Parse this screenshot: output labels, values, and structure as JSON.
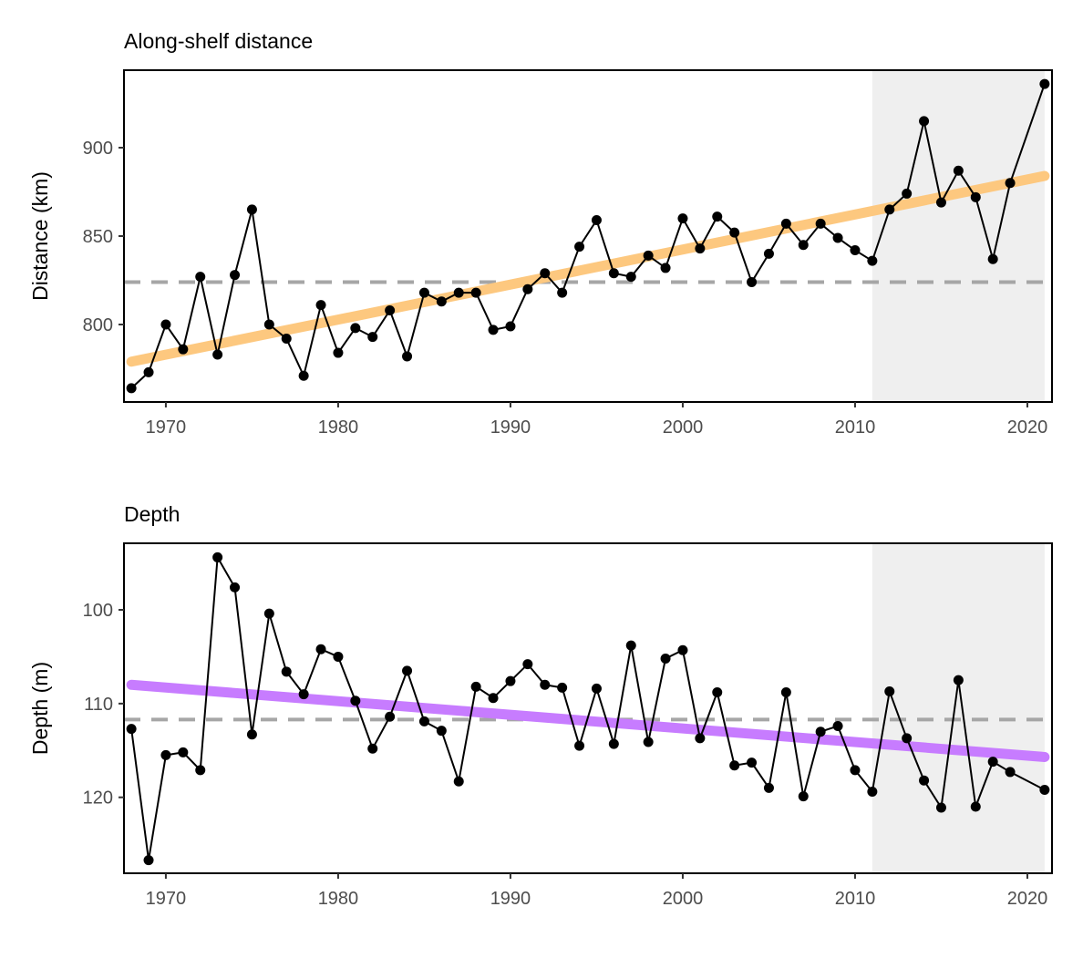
{
  "chart_data": [
    {
      "type": "line",
      "title": "Along-shelf distance",
      "ylabel": "Distance (km)",
      "x": [
        1968,
        1969,
        1970,
        1971,
        1972,
        1973,
        1974,
        1975,
        1976,
        1977,
        1978,
        1979,
        1980,
        1981,
        1982,
        1983,
        1984,
        1985,
        1986,
        1987,
        1988,
        1989,
        1990,
        1991,
        1992,
        1993,
        1994,
        1995,
        1996,
        1997,
        1998,
        1999,
        2000,
        2001,
        2002,
        2003,
        2004,
        2005,
        2006,
        2007,
        2008,
        2009,
        2010,
        2011,
        2012,
        2013,
        2014,
        2015,
        2016,
        2017,
        2018,
        2019,
        2021
      ],
      "series": [
        {
          "color": "#000000",
          "values": [
            764,
            773,
            800,
            786,
            827,
            783,
            828,
            865,
            800,
            792,
            771,
            811,
            784,
            798,
            793,
            808,
            782,
            818,
            813,
            818,
            818,
            797,
            799,
            820,
            829,
            818,
            844,
            859,
            829,
            827,
            839,
            832,
            860,
            843,
            861,
            852,
            824,
            840,
            857,
            845,
            857,
            849,
            842,
            836,
            865,
            874,
            915,
            869,
            887,
            872,
            837,
            880,
            936
          ]
        }
      ],
      "mean": 824,
      "mean_color": "#a6a6a6",
      "trend": {
        "x": [
          1968,
          2021
        ],
        "values": [
          779,
          884
        ],
        "color": "#fdc87f"
      },
      "shaded": [
        2011,
        2021
      ],
      "shade_color": "#efefef",
      "xlim": [
        1967.57,
        2021.43
      ],
      "xticks": [
        1970,
        1980,
        1990,
        2000,
        2010,
        2020
      ],
      "ylim": [
        756.2,
        943.8
      ],
      "yticks": [
        800,
        850,
        900
      ],
      "y_reversed": false
    },
    {
      "type": "line",
      "title": "Depth",
      "ylabel": "Depth (m)",
      "x": [
        1968,
        1969,
        1970,
        1971,
        1972,
        1973,
        1974,
        1975,
        1976,
        1977,
        1978,
        1979,
        1980,
        1981,
        1982,
        1983,
        1984,
        1985,
        1986,
        1987,
        1988,
        1989,
        1990,
        1991,
        1992,
        1993,
        1994,
        1995,
        1996,
        1997,
        1998,
        1999,
        2000,
        2001,
        2002,
        2003,
        2004,
        2005,
        2006,
        2007,
        2008,
        2009,
        2010,
        2011,
        2012,
        2013,
        2014,
        2015,
        2016,
        2017,
        2018,
        2019,
        2021
      ],
      "series": [
        {
          "color": "#000000",
          "values": [
            112.7,
            126.7,
            115.5,
            115.2,
            117.1,
            94.4,
            97.6,
            113.3,
            100.4,
            106.6,
            109.0,
            104.2,
            105.0,
            109.7,
            114.8,
            111.4,
            106.5,
            111.9,
            112.9,
            118.3,
            108.2,
            109.4,
            107.6,
            105.8,
            108.0,
            108.3,
            114.5,
            108.4,
            114.3,
            103.8,
            114.1,
            105.2,
            104.3,
            113.7,
            108.8,
            116.6,
            116.3,
            119.0,
            108.8,
            119.9,
            113.0,
            112.4,
            117.1,
            119.4,
            108.7,
            113.7,
            118.2,
            121.1,
            107.5,
            121.0,
            116.2,
            117.3,
            119.2
          ]
        }
      ],
      "mean": 111.7,
      "mean_color": "#a6a6a6",
      "trend": {
        "x": [
          1968,
          2021
        ],
        "values": [
          108.0,
          115.7
        ],
        "color": "#c77cff"
      },
      "shaded": [
        2011,
        2021
      ],
      "shade_color": "#efefef",
      "xlim": [
        1967.57,
        2021.43
      ],
      "xticks": [
        1970,
        1980,
        1990,
        2000,
        2010,
        2020
      ],
      "ylim": [
        92.9,
        128.1
      ],
      "yticks": [
        100,
        110,
        120
      ],
      "y_reversed": true
    }
  ]
}
